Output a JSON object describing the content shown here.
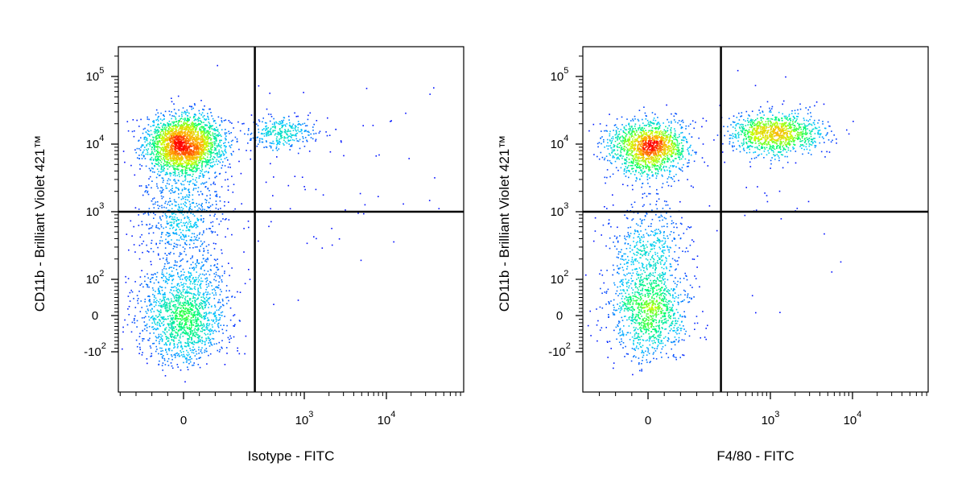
{
  "colors": {
    "frame": "#000000",
    "quadrant_lines": "#000000",
    "density_scale": [
      "#0000ff",
      "#00c8ff",
      "#00ff66",
      "#c8ff00",
      "#ffb000",
      "#ff0000"
    ]
  },
  "chart_data": [
    {
      "type": "scatter",
      "subtype": "flow-cytometry-density-dot-plot",
      "xlabel": "Isotype - FITC",
      "ylabel": "CD11b - Brilliant Violet 421™",
      "x_scale": "biexponential",
      "y_scale": "biexponential",
      "x_ticks": [
        {
          "value": 0,
          "base": "0",
          "exp": ""
        },
        {
          "value": 1000,
          "base": "10",
          "exp": "3"
        },
        {
          "value": 10000,
          "base": "10",
          "exp": "4"
        }
      ],
      "y_ticks": [
        {
          "value": -100,
          "base": "-10",
          "exp": "2"
        },
        {
          "value": 0,
          "base": "0",
          "exp": ""
        },
        {
          "value": 100,
          "base": "10",
          "exp": "2"
        },
        {
          "value": 1000,
          "base": "10",
          "exp": "3"
        },
        {
          "value": 10000,
          "base": "10",
          "exp": "4"
        },
        {
          "value": 100000,
          "base": "10",
          "exp": "5"
        }
      ],
      "gates": {
        "x_threshold": 250,
        "y_threshold": 1000
      },
      "populations": [
        {
          "x_center": 0,
          "x_spread": 60,
          "y_center": 10000,
          "y_log_spread": 0.22,
          "count": 2400
        },
        {
          "x_center": 0,
          "x_spread": 70,
          "y_center": 900,
          "y_log_spread": 0.45,
          "count": 700
        },
        {
          "x_center": 0,
          "x_spread": 70,
          "y_center": 0,
          "y_spread": 70,
          "count": 1500
        },
        {
          "x_center": 500,
          "x_log_spread": 0.25,
          "y_center": 15000,
          "y_log_spread": 0.12,
          "count": 320
        },
        {
          "x_center": 1500,
          "x_log_spread": 0.8,
          "y_center": 3000,
          "y_log_spread": 0.8,
          "count": 70
        }
      ]
    },
    {
      "type": "scatter",
      "subtype": "flow-cytometry-density-dot-plot",
      "xlabel": "F4/80 - FITC",
      "ylabel": "CD11b - Brilliant Violet 421™",
      "x_scale": "biexponential",
      "y_scale": "biexponential",
      "x_ticks": [
        {
          "value": 0,
          "base": "0",
          "exp": ""
        },
        {
          "value": 1000,
          "base": "10",
          "exp": "3"
        },
        {
          "value": 10000,
          "base": "10",
          "exp": "4"
        }
      ],
      "y_ticks": [
        {
          "value": -100,
          "base": "-10",
          "exp": "2"
        },
        {
          "value": 0,
          "base": "0",
          "exp": ""
        },
        {
          "value": 100,
          "base": "10",
          "exp": "2"
        },
        {
          "value": 1000,
          "base": "10",
          "exp": "3"
        },
        {
          "value": 10000,
          "base": "10",
          "exp": "4"
        },
        {
          "value": 100000,
          "base": "10",
          "exp": "5"
        }
      ],
      "gates": {
        "x_threshold": 250,
        "y_threshold": 1000
      },
      "populations": [
        {
          "x_center": 0,
          "x_spread": 60,
          "y_center": 9000,
          "y_log_spread": 0.2,
          "count": 1500
        },
        {
          "x_center": 1100,
          "x_log_spread": 0.28,
          "y_center": 15000,
          "y_log_spread": 0.15,
          "count": 1100
        },
        {
          "x_center": 0,
          "x_spread": 60,
          "y_center": 200,
          "y_log_spread": 0.5,
          "count": 700
        },
        {
          "x_center": 0,
          "x_spread": 60,
          "y_center": 0,
          "y_spread": 60,
          "count": 900
        },
        {
          "x_center": 1000,
          "x_log_spread": 0.7,
          "y_center": 2000,
          "y_log_spread": 0.8,
          "count": 40
        }
      ]
    }
  ]
}
